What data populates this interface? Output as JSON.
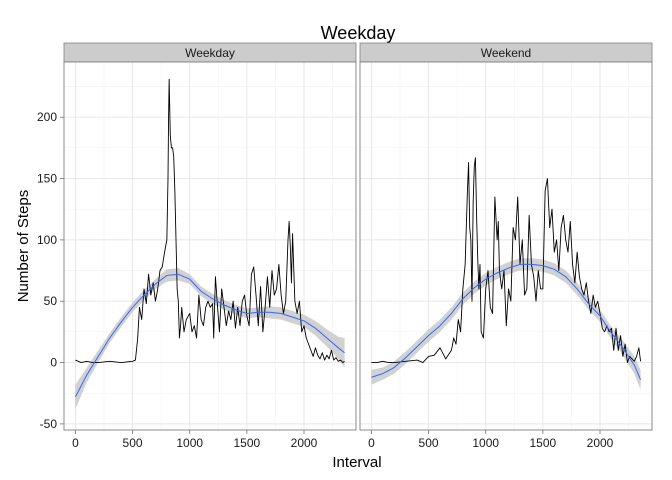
{
  "chart_data": {
    "type": "line",
    "title": "Weekday",
    "xlabel": "Interval",
    "ylabel": "Number of Steps",
    "xlim": [
      -100,
      2455
    ],
    "ylim": [
      -55,
      245
    ],
    "x_ticks": [
      0,
      500,
      1000,
      1500,
      2000
    ],
    "y_ticks": [
      -50,
      0,
      50,
      100,
      150,
      200
    ],
    "grid": true,
    "smooth_color": "#3366FF",
    "band_color": "#c9c9c9",
    "series_color": "#000000",
    "panels": [
      {
        "label": "Weekday",
        "raw": [
          [
            0,
            2
          ],
          [
            50,
            0
          ],
          [
            100,
            1
          ],
          [
            150,
            0
          ],
          [
            200,
            0
          ],
          [
            300,
            1
          ],
          [
            400,
            0
          ],
          [
            500,
            1
          ],
          [
            525,
            2
          ],
          [
            545,
            20
          ],
          [
            560,
            45
          ],
          [
            580,
            35
          ],
          [
            600,
            60
          ],
          [
            620,
            48
          ],
          [
            640,
            72
          ],
          [
            660,
            55
          ],
          [
            680,
            65
          ],
          [
            700,
            50
          ],
          [
            720,
            60
          ],
          [
            740,
            75
          ],
          [
            760,
            78
          ],
          [
            780,
            90
          ],
          [
            800,
            100
          ],
          [
            810,
            150
          ],
          [
            815,
            200
          ],
          [
            820,
            231
          ],
          [
            830,
            185
          ],
          [
            840,
            175
          ],
          [
            850,
            175
          ],
          [
            860,
            168
          ],
          [
            870,
            140
          ],
          [
            880,
            100
          ],
          [
            890,
            60
          ],
          [
            900,
            50
          ],
          [
            910,
            20
          ],
          [
            920,
            30
          ],
          [
            930,
            45
          ],
          [
            950,
            25
          ],
          [
            970,
            35
          ],
          [
            1000,
            40
          ],
          [
            1020,
            25
          ],
          [
            1040,
            30
          ],
          [
            1060,
            20
          ],
          [
            1080,
            55
          ],
          [
            1100,
            35
          ],
          [
            1120,
            30
          ],
          [
            1140,
            45
          ],
          [
            1160,
            50
          ],
          [
            1180,
            45
          ],
          [
            1200,
            48
          ],
          [
            1210,
            20
          ],
          [
            1225,
            70
          ],
          [
            1240,
            50
          ],
          [
            1260,
            25
          ],
          [
            1280,
            60
          ],
          [
            1300,
            45
          ],
          [
            1320,
            30
          ],
          [
            1340,
            42
          ],
          [
            1360,
            35
          ],
          [
            1380,
            50
          ],
          [
            1400,
            28
          ],
          [
            1420,
            45
          ],
          [
            1440,
            30
          ],
          [
            1460,
            50
          ],
          [
            1480,
            55
          ],
          [
            1500,
            38
          ],
          [
            1520,
            30
          ],
          [
            1540,
            72
          ],
          [
            1560,
            78
          ],
          [
            1580,
            55
          ],
          [
            1600,
            30
          ],
          [
            1620,
            62
          ],
          [
            1640,
            25
          ],
          [
            1660,
            45
          ],
          [
            1680,
            70
          ],
          [
            1700,
            45
          ],
          [
            1720,
            75
          ],
          [
            1740,
            55
          ],
          [
            1760,
            60
          ],
          [
            1780,
            80
          ],
          [
            1800,
            55
          ],
          [
            1820,
            40
          ],
          [
            1840,
            50
          ],
          [
            1860,
            100
          ],
          [
            1870,
            115
          ],
          [
            1880,
            95
          ],
          [
            1890,
            65
          ],
          [
            1900,
            105
          ],
          [
            1920,
            50
          ],
          [
            1940,
            40
          ],
          [
            1960,
            50
          ],
          [
            1980,
            25
          ],
          [
            2000,
            30
          ],
          [
            2020,
            20
          ],
          [
            2040,
            15
          ],
          [
            2060,
            10
          ],
          [
            2080,
            5
          ],
          [
            2100,
            12
          ],
          [
            2120,
            6
          ],
          [
            2140,
            3
          ],
          [
            2160,
            8
          ],
          [
            2180,
            2
          ],
          [
            2200,
            6
          ],
          [
            2220,
            3
          ],
          [
            2240,
            10
          ],
          [
            2260,
            2
          ],
          [
            2280,
            4
          ],
          [
            2300,
            1
          ],
          [
            2320,
            2
          ],
          [
            2340,
            0
          ],
          [
            2355,
            1
          ]
        ],
        "smooth": [
          [
            0,
            -28
          ],
          [
            100,
            -10
          ],
          [
            200,
            5
          ],
          [
            300,
            20
          ],
          [
            400,
            33
          ],
          [
            500,
            45
          ],
          [
            600,
            55
          ],
          [
            700,
            64
          ],
          [
            800,
            71
          ],
          [
            900,
            72
          ],
          [
            1000,
            68
          ],
          [
            1100,
            58
          ],
          [
            1200,
            52
          ],
          [
            1300,
            47
          ],
          [
            1400,
            43
          ],
          [
            1500,
            40
          ],
          [
            1600,
            41
          ],
          [
            1700,
            41
          ],
          [
            1800,
            40
          ],
          [
            1900,
            37
          ],
          [
            2000,
            34
          ],
          [
            2100,
            28
          ],
          [
            2200,
            20
          ],
          [
            2300,
            12
          ],
          [
            2355,
            8
          ]
        ],
        "band": [
          10,
          6,
          5,
          4,
          4,
          4,
          4,
          4,
          5,
          5,
          4,
          4,
          4,
          4,
          4,
          4,
          4,
          5,
          5,
          5,
          5,
          6,
          7,
          9,
          12
        ]
      },
      {
        "label": "Weekend",
        "raw": [
          [
            0,
            0
          ],
          [
            50,
            0
          ],
          [
            100,
            1
          ],
          [
            150,
            0
          ],
          [
            200,
            0
          ],
          [
            300,
            1
          ],
          [
            400,
            2
          ],
          [
            450,
            0
          ],
          [
            500,
            5
          ],
          [
            550,
            6
          ],
          [
            600,
            12
          ],
          [
            650,
            3
          ],
          [
            700,
            10
          ],
          [
            720,
            20
          ],
          [
            740,
            15
          ],
          [
            760,
            35
          ],
          [
            780,
            25
          ],
          [
            800,
            60
          ],
          [
            820,
            80
          ],
          [
            840,
            140
          ],
          [
            850,
            163
          ],
          [
            860,
            110
          ],
          [
            870,
            100
          ],
          [
            880,
            50
          ],
          [
            890,
            130
          ],
          [
            900,
            160
          ],
          [
            910,
            167
          ],
          [
            920,
            120
          ],
          [
            930,
            85
          ],
          [
            940,
            60
          ],
          [
            950,
            80
          ],
          [
            960,
            25
          ],
          [
            980,
            20
          ],
          [
            1000,
            60
          ],
          [
            1020,
            75
          ],
          [
            1040,
            45
          ],
          [
            1060,
            40
          ],
          [
            1080,
            135
          ],
          [
            1100,
            100
          ],
          [
            1110,
            115
          ],
          [
            1120,
            75
          ],
          [
            1140,
            60
          ],
          [
            1160,
            75
          ],
          [
            1180,
            30
          ],
          [
            1200,
            60
          ],
          [
            1220,
            50
          ],
          [
            1240,
            110
          ],
          [
            1260,
            100
          ],
          [
            1280,
            135
          ],
          [
            1300,
            80
          ],
          [
            1320,
            100
          ],
          [
            1340,
            55
          ],
          [
            1360,
            60
          ],
          [
            1380,
            120
          ],
          [
            1400,
            80
          ],
          [
            1420,
            70
          ],
          [
            1440,
            50
          ],
          [
            1460,
            75
          ],
          [
            1480,
            60
          ],
          [
            1500,
            60
          ],
          [
            1520,
            140
          ],
          [
            1540,
            150
          ],
          [
            1560,
            110
          ],
          [
            1580,
            125
          ],
          [
            1600,
            90
          ],
          [
            1620,
            100
          ],
          [
            1640,
            75
          ],
          [
            1660,
            110
          ],
          [
            1680,
            120
          ],
          [
            1700,
            100
          ],
          [
            1720,
            90
          ],
          [
            1740,
            115
          ],
          [
            1760,
            80
          ],
          [
            1780,
            65
          ],
          [
            1800,
            90
          ],
          [
            1820,
            70
          ],
          [
            1840,
            60
          ],
          [
            1860,
            55
          ],
          [
            1880,
            65
          ],
          [
            1900,
            50
          ],
          [
            1920,
            40
          ],
          [
            1940,
            55
          ],
          [
            1960,
            45
          ],
          [
            1980,
            50
          ],
          [
            2000,
            40
          ],
          [
            2020,
            28
          ],
          [
            2040,
            25
          ],
          [
            2060,
            30
          ],
          [
            2080,
            25
          ],
          [
            2100,
            28
          ],
          [
            2120,
            10
          ],
          [
            2140,
            28
          ],
          [
            2160,
            10
          ],
          [
            2180,
            22
          ],
          [
            2200,
            5
          ],
          [
            2220,
            15
          ],
          [
            2240,
            0
          ],
          [
            2260,
            5
          ],
          [
            2280,
            3
          ],
          [
            2300,
            1
          ],
          [
            2320,
            5
          ],
          [
            2340,
            12
          ],
          [
            2355,
            1
          ]
        ],
        "smooth": [
          [
            0,
            -12
          ],
          [
            100,
            -9
          ],
          [
            200,
            -4
          ],
          [
            300,
            4
          ],
          [
            400,
            13
          ],
          [
            500,
            22
          ],
          [
            600,
            30
          ],
          [
            700,
            40
          ],
          [
            800,
            52
          ],
          [
            900,
            61
          ],
          [
            1000,
            68
          ],
          [
            1100,
            73
          ],
          [
            1200,
            77
          ],
          [
            1300,
            80
          ],
          [
            1400,
            80
          ],
          [
            1500,
            79
          ],
          [
            1600,
            76
          ],
          [
            1700,
            70
          ],
          [
            1800,
            60
          ],
          [
            1900,
            48
          ],
          [
            2000,
            38
          ],
          [
            2100,
            24
          ],
          [
            2200,
            12
          ],
          [
            2300,
            -2
          ],
          [
            2355,
            -14
          ]
        ],
        "band": [
          6,
          5,
          5,
          5,
          5,
          5,
          5,
          5,
          5,
          5,
          5,
          5,
          5,
          5,
          5,
          5,
          5,
          5,
          5,
          5,
          5,
          5,
          6,
          7,
          8
        ]
      }
    ]
  }
}
